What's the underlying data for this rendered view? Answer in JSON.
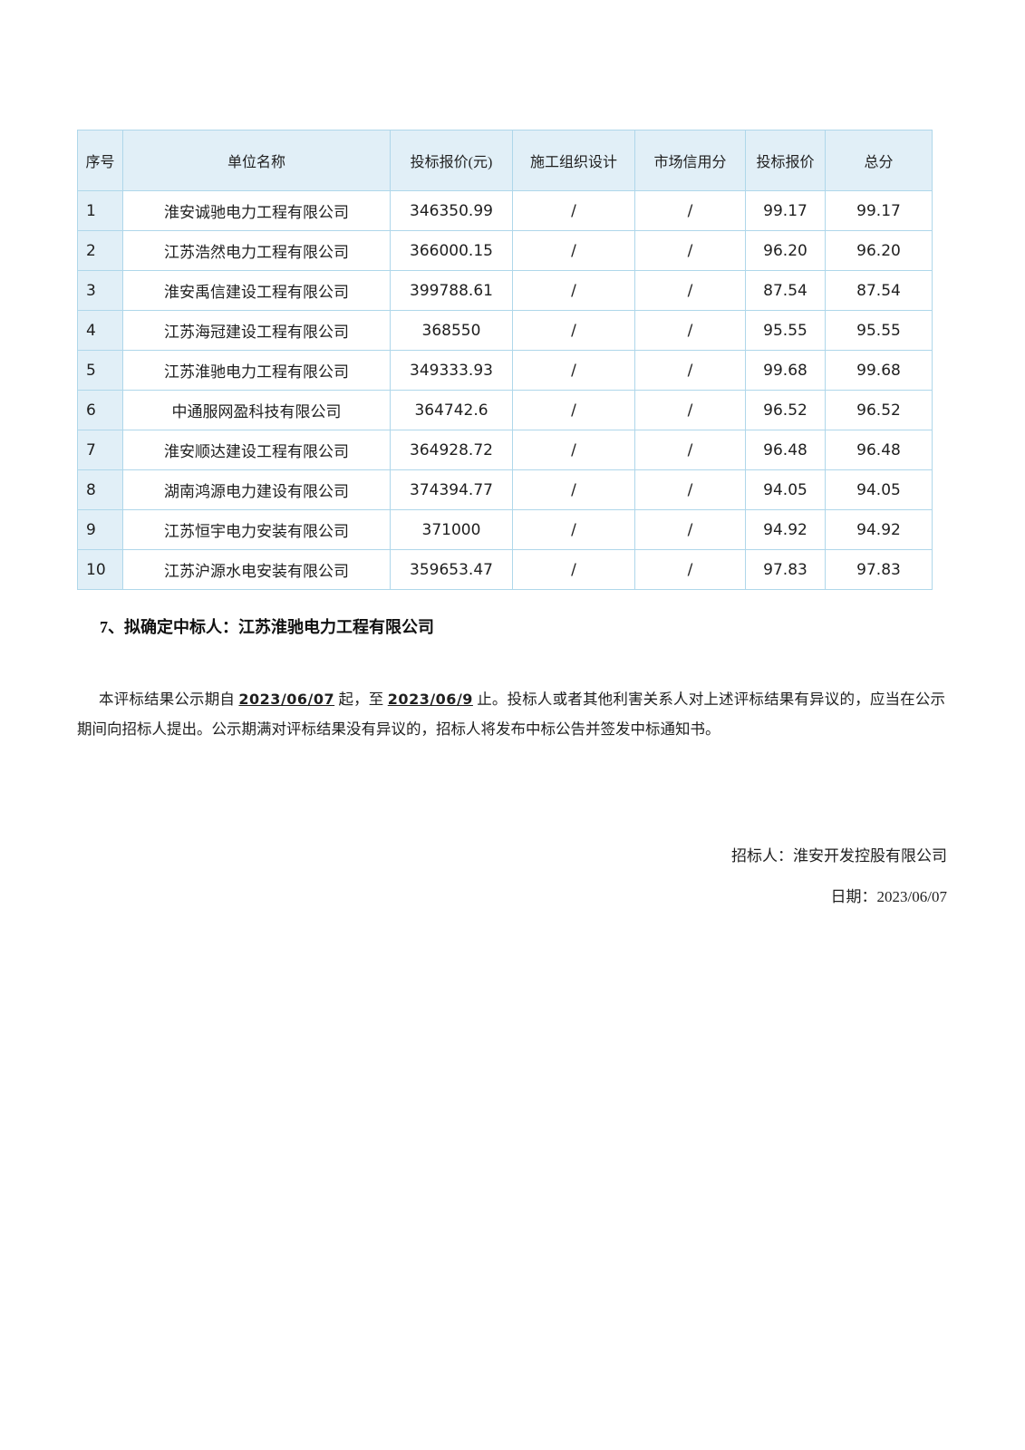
{
  "colors": {
    "table_header_fill": "#e1eff7",
    "table_border": "#afd7ea",
    "text": "#1f1f1f",
    "page_background": "#ffffff"
  },
  "table": {
    "columns": [
      "序号",
      "单位名称",
      "投标报价(元)",
      "施工组织设计",
      "市场信用分",
      "投标报价",
      "总分"
    ],
    "rows": [
      [
        "1",
        "淮安诚驰电力工程有限公司",
        "346350.99",
        "/",
        "/",
        "99.17",
        "99.17"
      ],
      [
        "2",
        "江苏浩然电力工程有限公司",
        "366000.15",
        "/",
        "/",
        "96.20",
        "96.20"
      ],
      [
        "3",
        "淮安禹信建设工程有限公司",
        "399788.61",
        "/",
        "/",
        "87.54",
        "87.54"
      ],
      [
        "4",
        "江苏海冠建设工程有限公司",
        "368550",
        "/",
        "/",
        "95.55",
        "95.55"
      ],
      [
        "5",
        "江苏淮驰电力工程有限公司",
        "349333.93",
        "/",
        "/",
        "99.68",
        "99.68"
      ],
      [
        "6",
        "中通服网盈科技有限公司",
        "364742.6",
        "/",
        "/",
        "96.52",
        "96.52"
      ],
      [
        "7",
        "淮安顺达建设工程有限公司",
        "364928.72",
        "/",
        "/",
        "96.48",
        "96.48"
      ],
      [
        "8",
        "湖南鸿源电力建设有限公司",
        "374394.77",
        "/",
        "/",
        "94.05",
        "94.05"
      ],
      [
        "9",
        "江苏恒宇电力安装有限公司",
        "371000",
        "/",
        "/",
        "94.92",
        "94.92"
      ],
      [
        "10",
        "江苏沪源水电安装有限公司",
        "359653.47",
        "/",
        "/",
        "97.83",
        "97.83"
      ]
    ]
  },
  "section7": {
    "label": "7、拟确定中标人：江苏淮驰电力工程有限公司"
  },
  "notice": {
    "segments": [
      {
        "text": "本评标结果公示期自 ",
        "em": false
      },
      {
        "text": "2023/06/07",
        "em": true
      },
      {
        "text": " 起，至 ",
        "em": false
      },
      {
        "text": "2023/06/9",
        "em": true
      },
      {
        "text": " 止。投标人或者其他利害关系人对上述评标结果有异议的，应当在公示期间向招标人提出。公示期满对评标结果没有异议的，招标人将发布中标公告并签发中标通知书。",
        "em": false
      }
    ]
  },
  "signature": {
    "bidder_line": "招标人：淮安开发控股有限公司",
    "date_line": "日期：2023/06/07"
  }
}
